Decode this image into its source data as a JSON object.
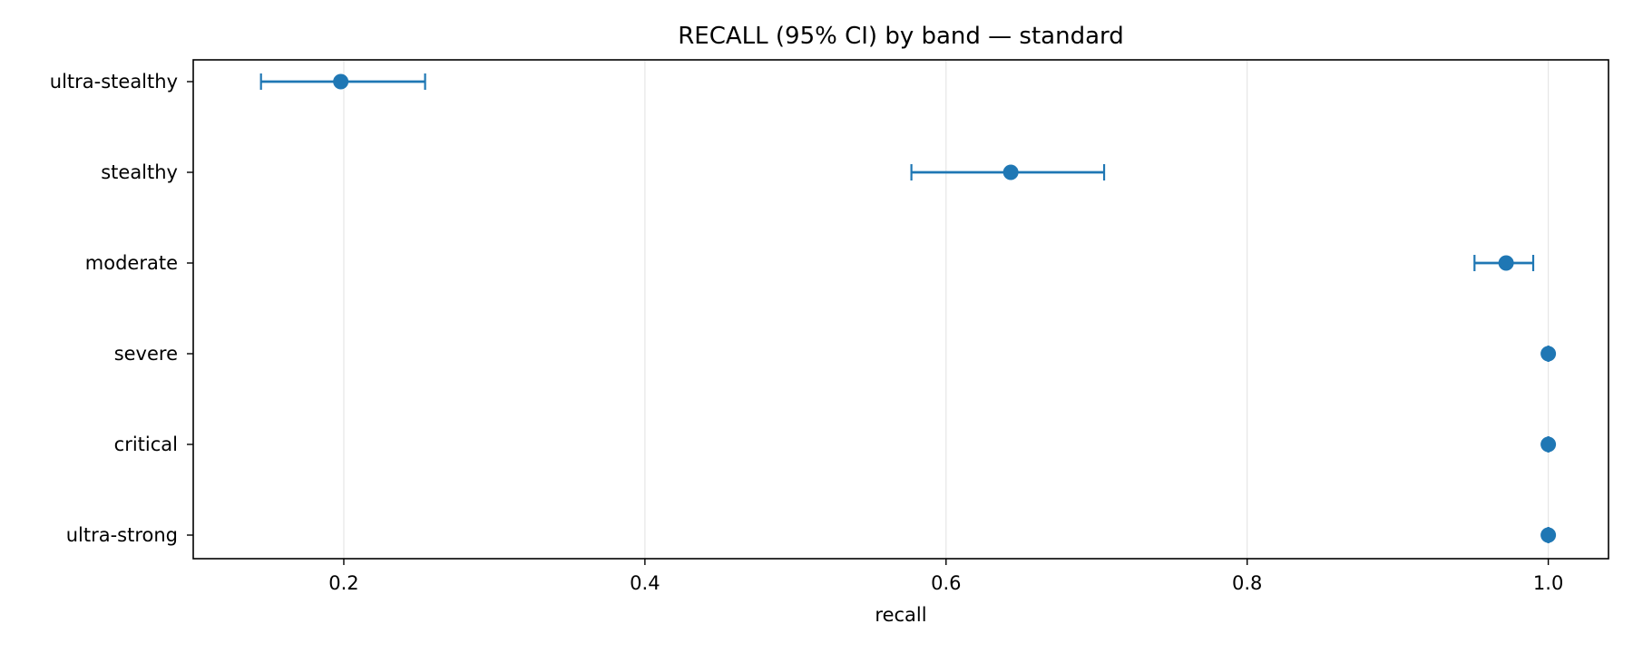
{
  "chart_data": {
    "type": "errorbar",
    "title": "RECALL (95% CI) by band — standard",
    "xlabel": "recall",
    "ylabel": "",
    "xlim": [
      0.1,
      1.04
    ],
    "xticks": [
      0.2,
      0.4,
      0.6,
      0.8,
      1.0
    ],
    "xtick_labels": [
      "0.2",
      "0.4",
      "0.6",
      "0.8",
      "1.0"
    ],
    "grid": "x",
    "color": "#1f77b4",
    "categories": [
      "ultra-stealthy",
      "stealthy",
      "moderate",
      "severe",
      "critical",
      "ultra-strong"
    ],
    "values": [
      0.198,
      0.643,
      0.972,
      1.0,
      1.0,
      1.0
    ],
    "ci_low": [
      0.145,
      0.577,
      0.951,
      1.0,
      1.0,
      1.0
    ],
    "ci_high": [
      0.254,
      0.705,
      0.99,
      1.0,
      1.0,
      1.0
    ]
  }
}
